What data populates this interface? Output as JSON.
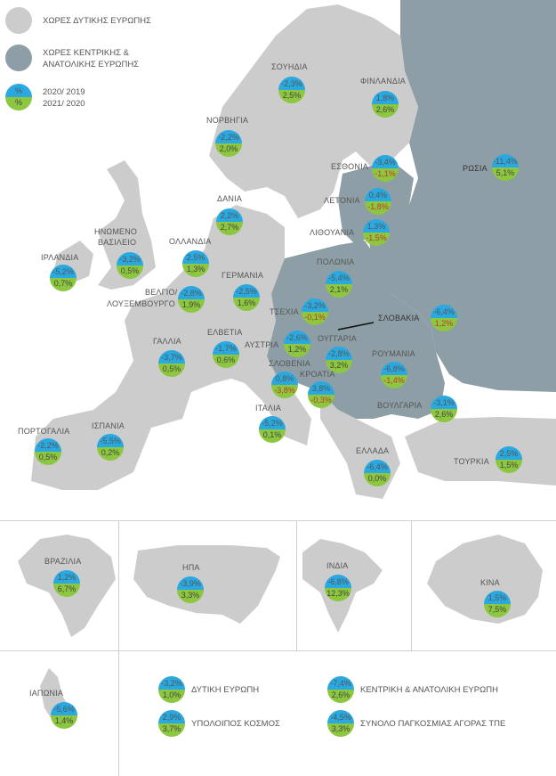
{
  "legend": {
    "western_label": "ΧΩΡΕΣ ΔΥΤΙΚΗΣ ΕΥΡΩΠΗΣ",
    "central_label_1": "ΧΩΡΕΣ ΚΕΝΤΡΙΚΗΣ &",
    "central_label_2": "ΑΝΑΤΟΛΙΚΗΣ ΕΥΡΩΠΗΣ",
    "pie_top": "%",
    "pie_bottom": "%",
    "period_1": "2020/ 2019",
    "period_2": "2021/ 2020",
    "colors": {
      "western": "#cccccc",
      "central": "#8e9ea6",
      "top": "#2aa9e0",
      "bottom": "#8dc63f"
    }
  },
  "countries": {
    "sweden": {
      "name": "ΣΟΥΗΔΙΑ",
      "v1": "-2,3%",
      "v2": "2,5%"
    },
    "finland": {
      "name": "ΦΙΝΛΑΝΔΙΑ",
      "v1": "1,8%",
      "v2": "2,6%"
    },
    "norway": {
      "name": "ΝΟΡΒΗΓΙΑ",
      "v1": "-2,2%",
      "v2": "2,0%"
    },
    "estonia": {
      "name": "ΕΣΘΟΝΙΑ",
      "v1": "-3,4%",
      "v2": "-1,1%"
    },
    "russia": {
      "name": "ΡΩΣΙΑ",
      "v1": "-11,4%",
      "v2": "5,1%"
    },
    "latvia": {
      "name": "ΛΕΤΟΝΙΑ",
      "v1": "0,4%",
      "v2": "-1,8%"
    },
    "denmark": {
      "name": "ΔΑΝΙΑ",
      "v1": "2,2%",
      "v2": "2,7%"
    },
    "lithuania": {
      "name": "ΛΙΘΟΥΑΝΙΑ",
      "v1": "1,3%",
      "v2": "-1,5%"
    },
    "ireland": {
      "name": "ΙΡΛΑΝΔΙΑ",
      "v1": "-5,2%",
      "v2": "0,7%"
    },
    "uk": {
      "name_1": "ΗΝΩΜΕΝΟ",
      "name_2": "ΒΑΣΙΛΕΙΟ",
      "v1": "-3,2%",
      "v2": "0,5%"
    },
    "netherlands": {
      "name": "ΟΛΛΑΝΔΙΑ",
      "v1": "2,5%",
      "v2": "1,3%"
    },
    "poland": {
      "name": "ΠΟΛΩΝΙΑ",
      "v1": "-5,4%",
      "v2": "2,1%"
    },
    "germany": {
      "name": "ΓΕΡΜΑΝΙΑ",
      "v1": "-2,5%",
      "v2": "1,6%"
    },
    "belgium": {
      "name_1": "ΒΕΛΓΙΟ/",
      "name_2": "ΛΟΥΞΕΜΒΟΥΡΓΟ",
      "v1": "-2,8%",
      "v2": "1,9%"
    },
    "czechia": {
      "name": "ΤΣΕΧΙΑ",
      "v1": "-3,2%",
      "v2": "-0,1%"
    },
    "slovakia": {
      "name": "ΣΛΟΒΑΚΙΑ",
      "v1": "-6,4%",
      "v2": "1,2%"
    },
    "france": {
      "name": "ΓΑΛΛΙΑ",
      "v1": "-3,7%",
      "v2": "0,5%"
    },
    "switzerland": {
      "name": "ΕΛΒΕΤΙΑ",
      "v1": "-1,7%",
      "v2": "0,6%"
    },
    "austria": {
      "name": "ΑΥΣΤΡΙΑ",
      "v1": "-2,6%",
      "v2": "1,2%"
    },
    "hungary": {
      "name": "ΟΥΓΓΑΡΙΑ",
      "v1": "-2,8%",
      "v2": "3,2%"
    },
    "romania": {
      "name": "ΡΟΥΜΑΝΙΑ",
      "v1": "-6,8%",
      "v2": "-1,4%"
    },
    "slovenia": {
      "name": "ΣΛΟΒΕΝΙΑ",
      "v1": "0,8%",
      "v2": "-3,8%"
    },
    "croatia": {
      "name": "ΚΡΟΑΤΙΑ",
      "v1": "3,8%",
      "v2": "-0,3%"
    },
    "bulgaria": {
      "name": "ΒΟΥΛΓΑΡΙΑ",
      "v1": "-3,1%",
      "v2": "2,6%"
    },
    "italy": {
      "name": "ΙΤΑΛΙΑ",
      "v1": "-5,2%",
      "v2": "0,1%"
    },
    "portugal": {
      "name": "ΠΟΡΤΟΓΑΛΙΑ",
      "v1": "-2,2%",
      "v2": "0,5%"
    },
    "spain": {
      "name": "ΙΣΠΑΝΙΑ",
      "v1": "-5,5%",
      "v2": "0,2%"
    },
    "greece": {
      "name": "ΕΛΛΑΔΑ",
      "v1": "-6,4%",
      "v2": "0,0%"
    },
    "turkey": {
      "name": "ΤΟΥΡΚΙΑ",
      "v1": "2,5%",
      "v2": "1,5%"
    },
    "brazil": {
      "name": "ΒΡΑΖΙΛΙΑ",
      "v1": "1,2%",
      "v2": "6,7%"
    },
    "usa": {
      "name": "ΗΠΑ",
      "v1": "-3,9%",
      "v2": "3,3%"
    },
    "india": {
      "name": "ΙΝΔΙΑ",
      "v1": "-6,8%",
      "v2": "12,3%"
    },
    "china": {
      "name": "ΚΙΝΑ",
      "v1": "1,5%",
      "v2": "7,5%"
    },
    "japan": {
      "name": "ΙΑΠΩΝΙΑ",
      "v1": "-5,6%",
      "v2": "1,4%"
    }
  },
  "regions": {
    "western_europe": {
      "name": "ΔΥΤΙΚΗ ΕΥΡΩΠΗ",
      "v1": "-3,2%",
      "v2": "1,0%"
    },
    "central_eastern_europe": {
      "name": "ΚΕΝΤΡΙΚΗ & ΑΝΑΤΟΛΙΚΗ ΕΥΡΩΠΗ",
      "v1": "-7,4%",
      "v2": "2,6%"
    },
    "rest_of_world": {
      "name": "ΥΠΟΛΟΙΠΟΣ ΚΟΣΜΟΣ",
      "v1": "2,9%",
      "v2": "3,7%"
    },
    "global_total": {
      "name": "ΣΥΝΟΛΟ ΠΑΓΚΟΣΜΙΑΣ ΑΓΟΡΑΣ ΤΠΕ",
      "v1": "-4,5%",
      "v2": "3,3%"
    }
  }
}
